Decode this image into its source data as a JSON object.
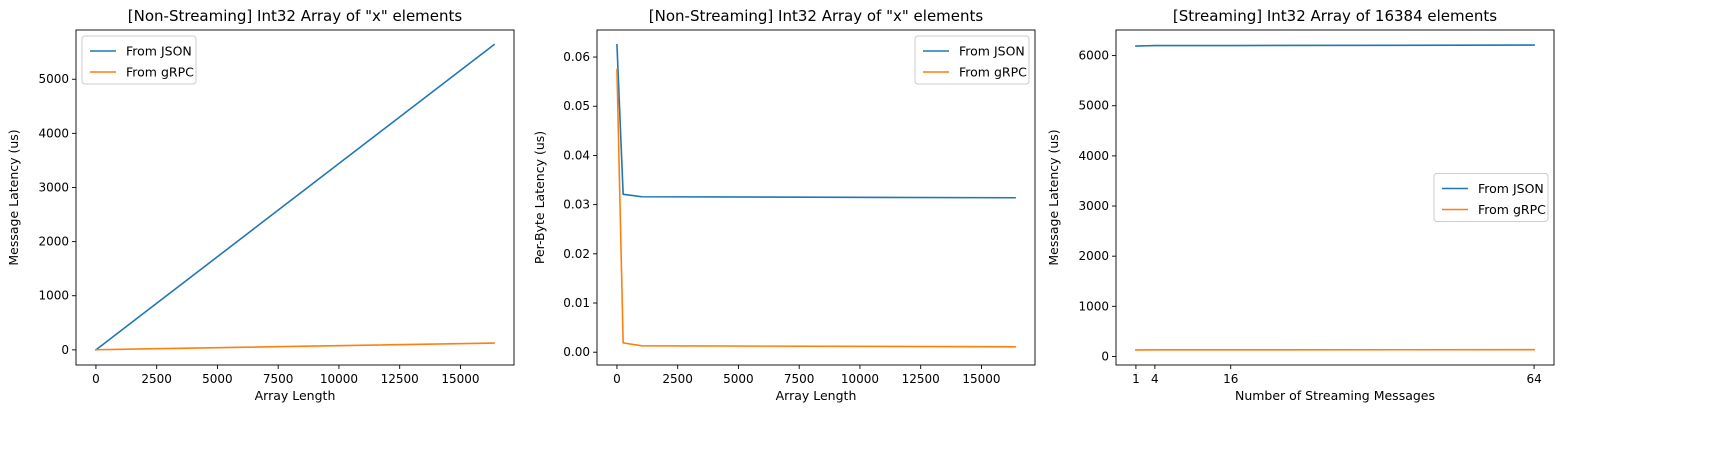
{
  "chart_data": [
    {
      "type": "line",
      "title": "[Non-Streaming] Int32 Array of \"x\" elements",
      "xlabel": "Array Length",
      "ylabel": "Message Latency (us)",
      "xlim": [
        -820,
        17204
      ],
      "ylim": [
        -280,
        5910
      ],
      "xticks": [
        0,
        2500,
        5000,
        7500,
        10000,
        12500,
        15000
      ],
      "yticks": [
        0,
        1000,
        2000,
        3000,
        4000,
        5000
      ],
      "legend": "top-left",
      "grid": false,
      "series": [
        {
          "name": "From JSON",
          "color": "#1f77b4",
          "x": [
            1,
            256,
            1024,
            16384
          ],
          "y": [
            1,
            88,
            352,
            5640
          ]
        },
        {
          "name": "From gRPC",
          "color": "#ff7f0e",
          "x": [
            1,
            256,
            1024,
            16384
          ],
          "y": [
            2,
            4,
            10,
            125
          ]
        }
      ]
    },
    {
      "type": "line",
      "title": "[Non-Streaming] Int32 Array of \"x\" elements",
      "xlabel": "Array Length",
      "ylabel": "Per-Byte Latency (us)",
      "xlim": [
        -820,
        17204
      ],
      "ylim": [
        -0.0026,
        0.0655
      ],
      "xticks": [
        0,
        2500,
        5000,
        7500,
        10000,
        12500,
        15000
      ],
      "yticks": [
        0.0,
        0.01,
        0.02,
        0.03,
        0.04,
        0.05,
        0.06
      ],
      "yticklabels": [
        "0.00",
        "0.01",
        "0.02",
        "0.03",
        "0.04",
        "0.05",
        "0.06"
      ],
      "legend": "top-right",
      "grid": false,
      "series": [
        {
          "name": "From JSON",
          "color": "#1f77b4",
          "x": [
            1,
            256,
            1024,
            16384
          ],
          "y": [
            0.0625,
            0.0321,
            0.0316,
            0.0314
          ]
        },
        {
          "name": "From gRPC",
          "color": "#ff7f0e",
          "x": [
            1,
            256,
            1024,
            16384
          ],
          "y": [
            0.0575,
            0.0019,
            0.0013,
            0.0011
          ]
        }
      ]
    },
    {
      "type": "line",
      "title": "[Streaming] Int32 Array of 16384 elements",
      "xlabel": "Number of Streaming Messages",
      "ylabel": "Message Latency (us)",
      "xlim": [
        -2.15,
        67.15
      ],
      "ylim": [
        -170,
        6510
      ],
      "xticks": [
        1,
        4,
        16,
        64
      ],
      "yticks": [
        0,
        1000,
        2000,
        3000,
        4000,
        5000,
        6000
      ],
      "legend": "center-right",
      "grid": false,
      "series": [
        {
          "name": "From JSON",
          "color": "#1f77b4",
          "x": [
            1,
            4,
            16,
            64
          ],
          "y": [
            6190,
            6200,
            6200,
            6210
          ]
        },
        {
          "name": "From gRPC",
          "color": "#ff7f0e",
          "x": [
            1,
            4,
            16,
            64
          ],
          "y": [
            130,
            132,
            133,
            135
          ]
        }
      ]
    }
  ]
}
